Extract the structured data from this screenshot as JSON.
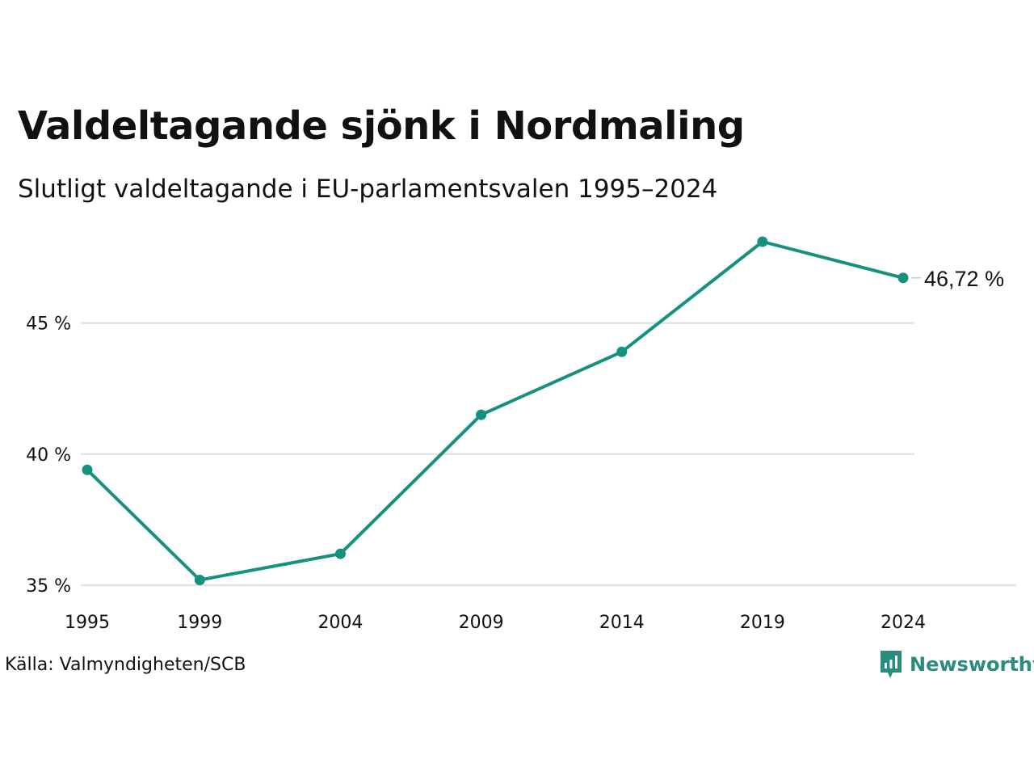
{
  "title": "Valdeltagande sjönk i Nordmaling",
  "subtitle": "Slutligt valdeltagande i EU-parlamentsvalen 1995–2024",
  "source": "Källa: Valmyndigheten/SCB",
  "brand": {
    "name": "Newsworthy",
    "icon": "newsworthy-logo-icon",
    "color": "#2a8c7e"
  },
  "colors": {
    "line": "#17917f",
    "grid": "#e3e3e3",
    "text": "#111111"
  },
  "chart_data": {
    "type": "line",
    "x": [
      1995,
      1999,
      2004,
      2009,
      2014,
      2019,
      2024
    ],
    "x_tick_labels": [
      "1995",
      "1999",
      "2004",
      "2009",
      "2014",
      "2019",
      "2024"
    ],
    "series": [
      {
        "values": [
          39.4,
          35.2,
          36.2,
          41.5,
          43.9,
          48.1,
          46.72
        ],
        "end_label": "46,72 %"
      }
    ],
    "y_ticks": [
      35,
      40,
      45
    ],
    "y_tick_labels": [
      "35 %",
      "40 %",
      "45 %"
    ],
    "ylim": [
      35,
      48.1
    ],
    "grid": true,
    "legend": "none"
  }
}
